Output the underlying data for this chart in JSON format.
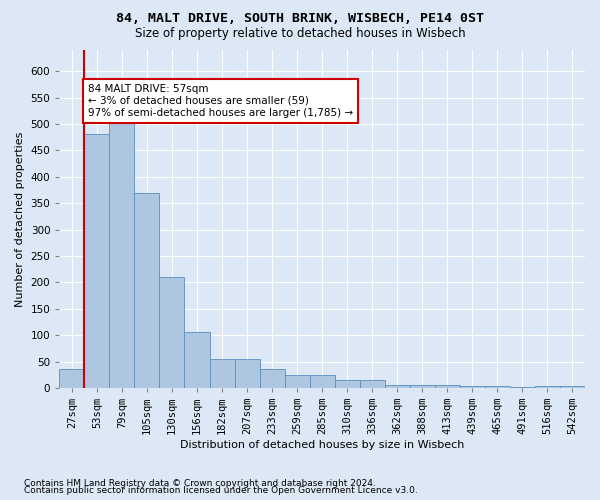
{
  "title1": "84, MALT DRIVE, SOUTH BRINK, WISBECH, PE14 0ST",
  "title2": "Size of property relative to detached houses in Wisbech",
  "xlabel": "Distribution of detached houses by size in Wisbech",
  "ylabel": "Number of detached properties",
  "footnote1": "Contains HM Land Registry data © Crown copyright and database right 2024.",
  "footnote2": "Contains public sector information licensed under the Open Government Licence v3.0.",
  "categories": [
    "27sqm",
    "53sqm",
    "79sqm",
    "105sqm",
    "130sqm",
    "156sqm",
    "182sqm",
    "207sqm",
    "233sqm",
    "259sqm",
    "285sqm",
    "310sqm",
    "336sqm",
    "362sqm",
    "388sqm",
    "413sqm",
    "439sqm",
    "465sqm",
    "491sqm",
    "516sqm",
    "542sqm"
  ],
  "values": [
    35,
    480,
    510,
    370,
    210,
    105,
    55,
    55,
    35,
    25,
    25,
    15,
    15,
    5,
    5,
    5,
    3,
    3,
    1,
    3,
    3
  ],
  "bar_color": "#aec6e0",
  "bar_edge_color": "#5a8fc0",
  "bar_edge_width": 0.6,
  "property_line_color": "#cc0000",
  "annotation_text": "84 MALT DRIVE: 57sqm\n← 3% of detached houses are smaller (59)\n97% of semi-detached houses are larger (1,785) →",
  "annotation_box_color": "#ffffff",
  "annotation_box_edge_color": "#cc0000",
  "ylim": [
    0,
    640
  ],
  "yticks": [
    0,
    50,
    100,
    150,
    200,
    250,
    300,
    350,
    400,
    450,
    500,
    550,
    600
  ],
  "bg_color": "#dce8f5",
  "plot_bg_color": "#dce8f5",
  "title1_fontsize": 9.5,
  "title2_fontsize": 8.5,
  "xlabel_fontsize": 8,
  "ylabel_fontsize": 8,
  "tick_fontsize": 7.5,
  "annot_fontsize": 7.5,
  "footnote_fontsize": 6.5
}
